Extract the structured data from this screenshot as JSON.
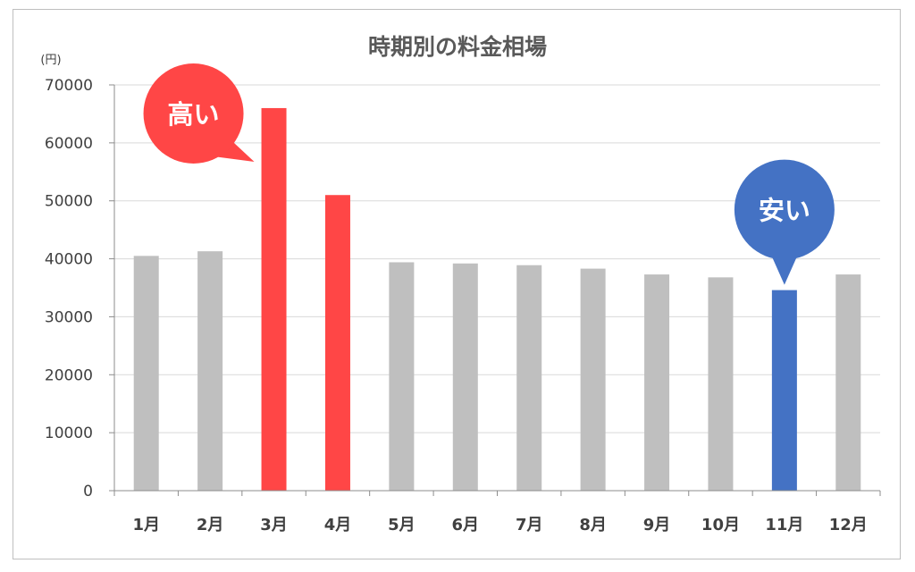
{
  "chart_data": {
    "type": "bar",
    "title": "時期別の料金相場",
    "ylabel": "(円)",
    "xlabel": "",
    "categories": [
      "1月",
      "2月",
      "3月",
      "4月",
      "5月",
      "6月",
      "7月",
      "8月",
      "9月",
      "10月",
      "11月",
      "12月"
    ],
    "values": [
      40500,
      41300,
      66000,
      51000,
      39400,
      39200,
      38900,
      38300,
      37300,
      36800,
      34600,
      37300
    ],
    "ylim": [
      0,
      70000
    ],
    "yticks": [
      "0",
      "10000",
      "20000",
      "30000",
      "40000",
      "50000",
      "60000",
      "70000"
    ],
    "grid": true,
    "colors": {
      "default": "#bfbfbf",
      "high": "#ff4646",
      "low": "#4472c4"
    },
    "highlight": {
      "high": [
        "3月",
        "4月"
      ],
      "low": [
        "11月"
      ]
    },
    "annotations": [
      {
        "text": "高い",
        "category": "3月",
        "color": "#ff4646",
        "tail": "right"
      },
      {
        "text": "安い",
        "category": "11月",
        "color": "#4472c4",
        "tail": "down"
      }
    ]
  }
}
